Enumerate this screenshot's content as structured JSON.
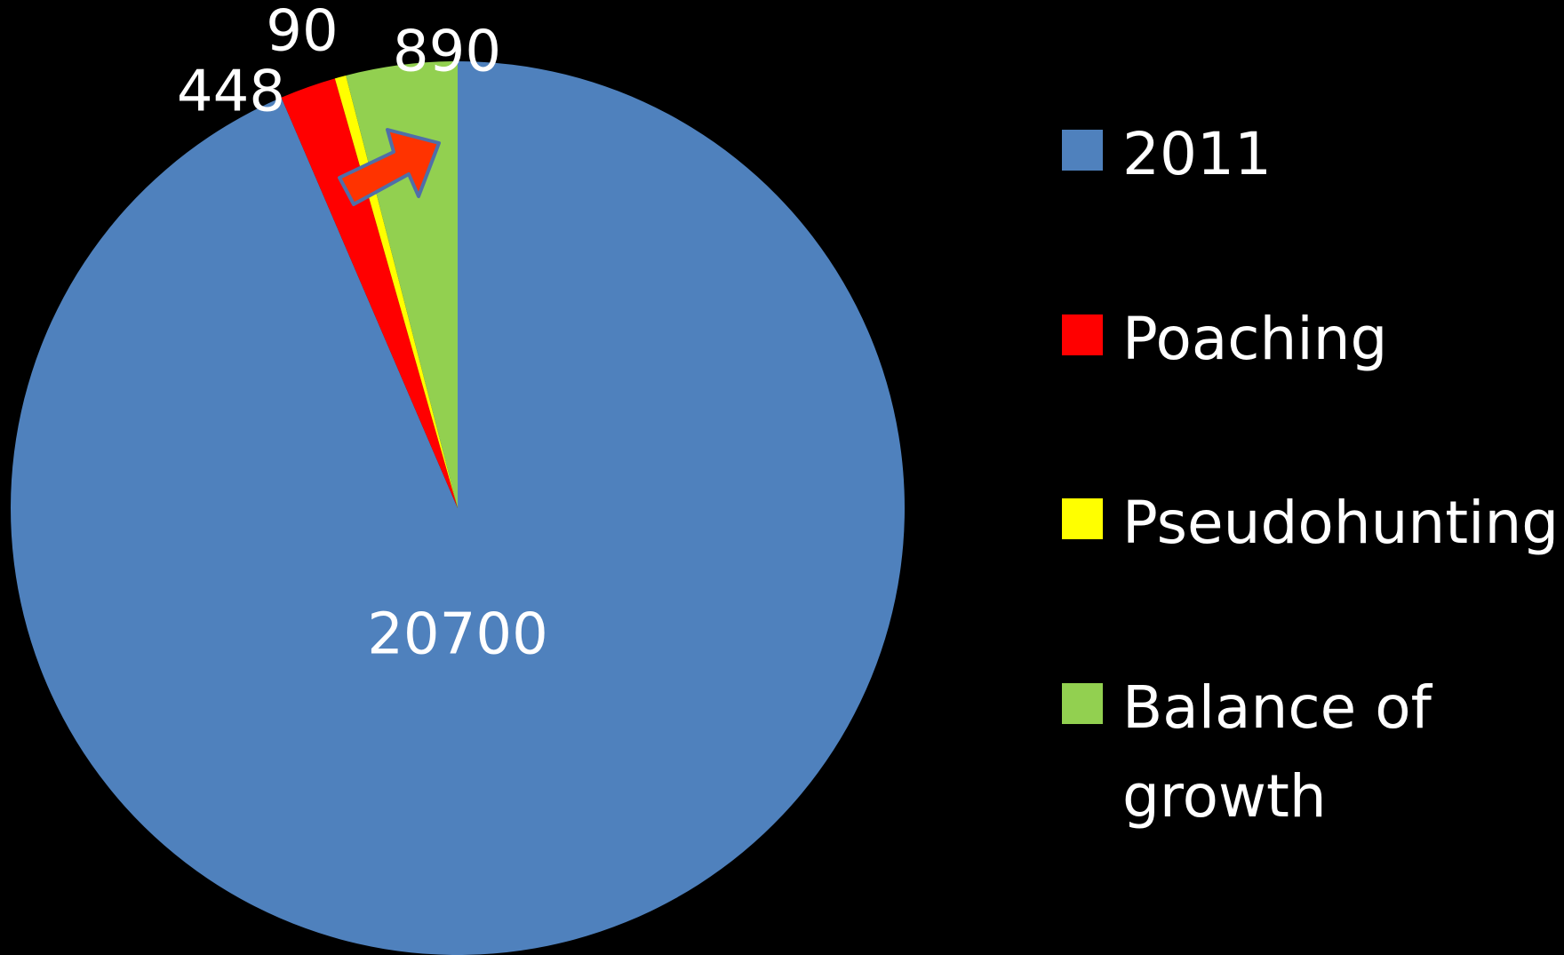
{
  "chart_data": {
    "type": "pie",
    "categories": [
      "2011",
      "Poaching",
      "Pseudohunting",
      "Balance of growth"
    ],
    "values": [
      20700,
      448,
      90,
      890
    ],
    "colors": [
      "#4f81bd",
      "#ff0000",
      "#ffff00",
      "#92d050"
    ],
    "legend": "right"
  }
}
